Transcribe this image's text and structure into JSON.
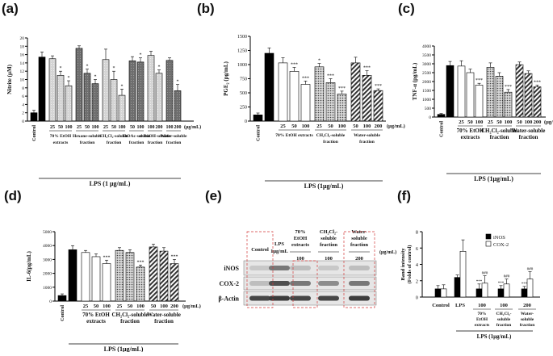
{
  "figure": {
    "unit": "(μg/mL)",
    "control_label": "Control",
    "lps_label": "LPS (1 μg/mL)",
    "lps_label_b": "LPS (1μg/mL)",
    "lps_label_cd": "LPS (1μg/mL)"
  },
  "chart_data": [
    {
      "panel": "(a)",
      "type": "bar",
      "ylabel": "Nitrite (μM)",
      "ylim": [
        0,
        20
      ],
      "yticks": [
        0,
        2,
        4,
        6,
        8,
        10,
        12,
        14,
        16,
        18,
        20
      ],
      "control": 2.0,
      "lps": 15.4,
      "groups": [
        {
          "name": "70% EtOH extracts",
          "doses": [
            "25",
            "50",
            "100"
          ],
          "values": [
            15.0,
            11.0,
            8.5
          ],
          "errors": [
            0.7,
            1.0,
            1.2
          ],
          "stars": [
            "",
            "*",
            "*"
          ],
          "pattern": "light"
        },
        {
          "name": "Hexane-soluble fraction",
          "doses": [
            "25",
            "50",
            "100"
          ],
          "values": [
            17.5,
            11.5,
            9.0
          ],
          "errors": [
            0.6,
            1.0,
            1.0
          ],
          "stars": [
            "",
            "*",
            "*"
          ],
          "pattern": "dark"
        },
        {
          "name": "CH₂Cl₂-soluble fraction",
          "doses": [
            "25",
            "50",
            "100"
          ],
          "values": [
            14.8,
            10.0,
            6.2
          ],
          "errors": [
            2.5,
            2.0,
            1.5
          ],
          "stars": [
            "",
            "*",
            "*"
          ],
          "pattern": "light"
        },
        {
          "name": "EtOAc-soluble fraction",
          "doses": [
            "50",
            "100"
          ],
          "values": [
            14.5,
            14.2
          ],
          "errors": [
            1.0,
            1.0
          ],
          "stars": [
            "",
            "*"
          ],
          "pattern": "dark"
        },
        {
          "name": "n-BuOH-soluble fraction",
          "doses": [
            "100",
            "200"
          ],
          "values": [
            15.8,
            11.5
          ],
          "errors": [
            1.0,
            0.8
          ],
          "stars": [
            "",
            "*"
          ],
          "pattern": "light"
        },
        {
          "name": "Water-soluble fraction",
          "doses": [
            "100",
            "200"
          ],
          "values": [
            14.6,
            7.3
          ],
          "errors": [
            0.6,
            1.5
          ],
          "stars": [
            "",
            "*"
          ],
          "pattern": "dark"
        }
      ],
      "extra_values": [
        {
          "group": "70% EtOH extracts",
          "value": 11.0
        }
      ]
    },
    {
      "panel": "(b)",
      "type": "bar",
      "ylabel": "PGE₂ (pg/mL)",
      "ylim": [
        0,
        1500
      ],
      "yticks": [
        0,
        250,
        500,
        750,
        1000,
        1250,
        1500
      ],
      "control": 110,
      "lps": 1200,
      "groups": [
        {
          "name": "70% EtOH extracts",
          "doses": [
            "25",
            "50",
            "100"
          ],
          "values": [
            1030,
            880,
            650
          ],
          "errors": [
            90,
            70,
            60
          ],
          "stars": [
            "",
            "***",
            "***"
          ],
          "pattern": "white"
        },
        {
          "name": "CH₂Cl₂-soluble fraction",
          "doses": [
            "25",
            "50",
            "100"
          ],
          "values": [
            960,
            680,
            480
          ],
          "errors": [
            60,
            70,
            50
          ],
          "stars": [
            "*",
            "***",
            "***"
          ],
          "pattern": "dots"
        },
        {
          "name": "Water-soluble fraction",
          "doses": [
            "50",
            "100",
            "200"
          ],
          "values": [
            1030,
            810,
            540
          ],
          "errors": [
            100,
            80,
            30
          ],
          "stars": [
            "",
            "***",
            "***"
          ],
          "pattern": "hatch"
        }
      ]
    },
    {
      "panel": "(c)",
      "type": "bar",
      "ylabel": "TNF-α (pg/mL)",
      "ylim": [
        0,
        4000
      ],
      "yticks": [
        0,
        500,
        1000,
        1500,
        2000,
        2500,
        3000,
        3500,
        4000
      ],
      "control": 150,
      "lps": 2900,
      "groups": [
        {
          "name": "70% EtOH extracts",
          "doses": [
            "25",
            "50",
            "100"
          ],
          "values": [
            2870,
            2500,
            1800
          ],
          "errors": [
            300,
            200,
            100
          ],
          "stars": [
            "",
            "",
            "***"
          ],
          "pattern": "white"
        },
        {
          "name": "CH₂Cl₂-soluble fraction",
          "doses": [
            "25",
            "50",
            "100"
          ],
          "values": [
            2800,
            2300,
            1400
          ],
          "errors": [
            250,
            200,
            150
          ],
          "stars": [
            "",
            "",
            "***"
          ],
          "pattern": "dots"
        },
        {
          "name": "Water-soluble fraction",
          "doses": [
            "50",
            "100",
            "200"
          ],
          "values": [
            2950,
            2450,
            1700
          ],
          "errors": [
            150,
            150,
            100
          ],
          "stars": [
            "",
            "",
            "***"
          ],
          "pattern": "hatch"
        }
      ]
    },
    {
      "panel": "(d)",
      "type": "bar",
      "ylabel": "IL-6(pg/mL)",
      "ylim": [
        0,
        5000
      ],
      "yticks": [
        0,
        1000,
        2000,
        3000,
        4000,
        5000
      ],
      "control": 400,
      "lps": 3700,
      "groups": [
        {
          "name": "70% EtOH extracts",
          "doses": [
            "25",
            "50",
            "100"
          ],
          "values": [
            3500,
            3200,
            2700
          ],
          "errors": [
            150,
            200,
            250
          ],
          "stars": [
            "",
            "",
            "***"
          ],
          "pattern": "white"
        },
        {
          "name": "CH₂Cl₂-soluble fraction",
          "doses": [
            "25",
            "50",
            "100"
          ],
          "values": [
            3650,
            3500,
            2450
          ],
          "errors": [
            200,
            200,
            150
          ],
          "stars": [
            "",
            "",
            "***"
          ],
          "pattern": "dots"
        },
        {
          "name": "Water-soluble fraction",
          "doses": [
            "50",
            "100",
            "200"
          ],
          "values": [
            3900,
            3600,
            2700
          ],
          "errors": [
            200,
            250,
            300
          ],
          "stars": [
            "",
            "",
            "***"
          ],
          "pattern": "hatch"
        }
      ]
    },
    {
      "panel": "(f)",
      "type": "bar",
      "ylabel": "Band intensity (Folds of control)",
      "ylim": [
        0,
        8
      ],
      "yticks": [
        0,
        2,
        4,
        6,
        8
      ],
      "legend": [
        "iNOS",
        "COX-2"
      ],
      "categories": [
        "Control",
        "LPS",
        "100",
        "100",
        "200"
      ],
      "group_labels": [
        "70% EtOH extracts",
        "CH₂Cl₂-soluble fraction",
        "Water-soluble fraction"
      ],
      "series": [
        {
          "name": "iNOS",
          "values": [
            1.0,
            2.4,
            1.0,
            1.0,
            1.0
          ],
          "errors": [
            0.4,
            0.3,
            0.6,
            0.4,
            0.3
          ],
          "stars": [
            "",
            "",
            "***",
            "***",
            "***"
          ]
        },
        {
          "name": "COX-2",
          "values": [
            1.0,
            5.6,
            1.7,
            1.6,
            2.2
          ],
          "errors": [
            0.5,
            1.4,
            0.9,
            0.6,
            0.9
          ],
          "stars": [
            "",
            "",
            "###",
            "###",
            "###"
          ]
        }
      ]
    }
  ],
  "blot": {
    "panel": "(e)",
    "lanes": [
      "Control",
      "LPS 1μg/mL",
      "100",
      "100",
      "200"
    ],
    "group_headers": [
      "70% EtOH extracts",
      "CH₂Cl₂-soluble fraction",
      "Water-soluble fraction"
    ],
    "rows": [
      "iNOS",
      "COX-2",
      "β-Actin"
    ],
    "unit": "(μg/mL)"
  }
}
